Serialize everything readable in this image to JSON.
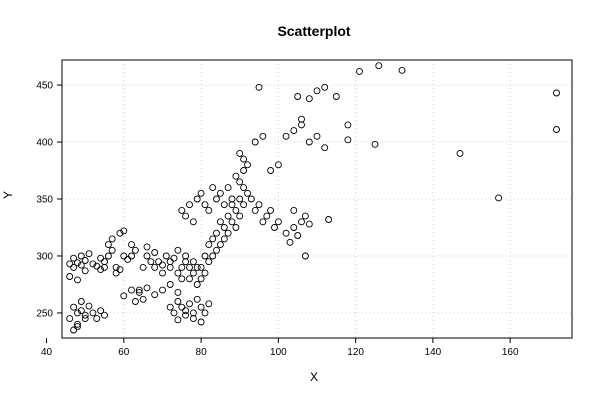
{
  "chart_data": {
    "type": "scatter",
    "title": "Scatterplot",
    "xlabel": "X",
    "ylabel": "Y",
    "xlim": [
      44,
      176
    ],
    "ylim": [
      228,
      472
    ],
    "xticks": [
      "40",
      "60",
      "80",
      "100",
      "120",
      "140",
      "160"
    ],
    "yticks": [
      "250",
      "300",
      "350",
      "400",
      "450"
    ],
    "xtick_values": [
      40,
      60,
      80,
      100,
      120,
      140,
      160
    ],
    "ytick_values": [
      250,
      300,
      350,
      400,
      450
    ],
    "grid": true,
    "point_style": "open-circle",
    "point_color": "#000000",
    "points": [
      [
        46,
        293
      ],
      [
        47,
        290
      ],
      [
        46,
        282
      ],
      [
        47,
        298
      ],
      [
        48,
        294
      ],
      [
        48,
        279
      ],
      [
        49,
        292
      ],
      [
        49,
        300
      ],
      [
        50,
        296
      ],
      [
        50,
        287
      ],
      [
        51,
        302
      ],
      [
        52,
        293
      ],
      [
        53,
        291
      ],
      [
        54,
        288
      ],
      [
        54,
        298
      ],
      [
        55,
        295
      ],
      [
        55,
        290
      ],
      [
        56,
        300
      ],
      [
        56,
        310
      ],
      [
        57,
        315
      ],
      [
        57,
        305
      ],
      [
        58,
        290
      ],
      [
        58,
        285
      ],
      [
        59,
        288
      ],
      [
        59,
        320
      ],
      [
        60,
        322
      ],
      [
        60,
        300
      ],
      [
        61,
        297
      ],
      [
        62,
        300
      ],
      [
        62,
        310
      ],
      [
        63,
        305
      ],
      [
        64,
        270
      ],
      [
        65,
        290
      ],
      [
        66,
        308
      ],
      [
        66,
        300
      ],
      [
        67,
        295
      ],
      [
        68,
        303
      ],
      [
        68,
        290
      ],
      [
        69,
        295
      ],
      [
        70,
        292
      ],
      [
        70,
        285
      ],
      [
        71,
        300
      ],
      [
        72,
        295
      ],
      [
        72,
        290
      ],
      [
        73,
        298
      ],
      [
        74,
        305
      ],
      [
        74,
        285
      ],
      [
        75,
        290
      ],
      [
        75,
        280
      ],
      [
        76,
        295
      ],
      [
        76,
        300
      ],
      [
        77,
        290
      ],
      [
        77,
        280
      ],
      [
        78,
        285
      ],
      [
        78,
        295
      ],
      [
        79,
        290
      ],
      [
        79,
        275
      ],
      [
        80,
        280
      ],
      [
        80,
        290
      ],
      [
        81,
        285
      ],
      [
        81,
        300
      ],
      [
        82,
        295
      ],
      [
        82,
        310
      ],
      [
        83,
        315
      ],
      [
        83,
        300
      ],
      [
        84,
        305
      ],
      [
        84,
        320
      ],
      [
        85,
        310
      ],
      [
        85,
        330
      ],
      [
        86,
        325
      ],
      [
        86,
        315
      ],
      [
        87,
        320
      ],
      [
        87,
        335
      ],
      [
        88,
        330
      ],
      [
        88,
        345
      ],
      [
        89,
        340
      ],
      [
        89,
        325
      ],
      [
        90,
        335
      ],
      [
        90,
        350
      ],
      [
        91,
        345
      ],
      [
        91,
        360
      ],
      [
        92,
        355
      ],
      [
        93,
        350
      ],
      [
        94,
        340
      ],
      [
        95,
        345
      ],
      [
        96,
        330
      ],
      [
        97,
        335
      ],
      [
        98,
        340
      ],
      [
        99,
        325
      ],
      [
        100,
        330
      ],
      [
        47,
        255
      ],
      [
        48,
        250
      ],
      [
        48,
        240
      ],
      [
        49,
        252
      ],
      [
        50,
        248
      ],
      [
        51,
        256
      ],
      [
        52,
        250
      ],
      [
        53,
        245
      ],
      [
        54,
        252
      ],
      [
        55,
        248
      ],
      [
        46,
        245
      ],
      [
        47,
        235
      ],
      [
        48,
        238
      ],
      [
        49,
        260
      ],
      [
        50,
        245
      ],
      [
        72,
        255
      ],
      [
        73,
        250
      ],
      [
        74,
        260
      ],
      [
        75,
        255
      ],
      [
        76,
        252
      ],
      [
        77,
        258
      ],
      [
        78,
        250
      ],
      [
        79,
        262
      ],
      [
        80,
        255
      ],
      [
        81,
        250
      ],
      [
        82,
        258
      ],
      [
        78,
        245
      ],
      [
        76,
        248
      ],
      [
        74,
        244
      ],
      [
        80,
        242
      ],
      [
        60,
        265
      ],
      [
        62,
        270
      ],
      [
        64,
        268
      ],
      [
        66,
        272
      ],
      [
        68,
        266
      ],
      [
        70,
        270
      ],
      [
        72,
        275
      ],
      [
        74,
        268
      ],
      [
        63,
        260
      ],
      [
        65,
        262
      ],
      [
        75,
        340
      ],
      [
        76,
        335
      ],
      [
        77,
        345
      ],
      [
        78,
        330
      ],
      [
        79,
        350
      ],
      [
        80,
        355
      ],
      [
        81,
        345
      ],
      [
        82,
        340
      ],
      [
        83,
        360
      ],
      [
        84,
        350
      ],
      [
        85,
        355
      ],
      [
        86,
        345
      ],
      [
        87,
        360
      ],
      [
        88,
        350
      ],
      [
        89,
        370
      ],
      [
        90,
        365
      ],
      [
        91,
        375
      ],
      [
        92,
        380
      ],
      [
        90,
        390
      ],
      [
        91,
        385
      ],
      [
        94,
        400
      ],
      [
        96,
        405
      ],
      [
        98,
        375
      ],
      [
        100,
        380
      ],
      [
        102,
        405
      ],
      [
        104,
        410
      ],
      [
        106,
        415
      ],
      [
        108,
        400
      ],
      [
        110,
        405
      ],
      [
        112,
        395
      ],
      [
        102,
        320
      ],
      [
        103,
        312
      ],
      [
        104,
        325
      ],
      [
        105,
        318
      ],
      [
        106,
        330
      ],
      [
        107,
        335
      ],
      [
        108,
        328
      ],
      [
        113,
        332
      ],
      [
        104,
        340
      ],
      [
        107,
        300
      ],
      [
        105,
        440
      ],
      [
        106,
        420
      ],
      [
        108,
        438
      ],
      [
        110,
        445
      ],
      [
        112,
        448
      ],
      [
        115,
        440
      ],
      [
        118,
        415
      ],
      [
        118,
        402
      ],
      [
        121,
        462
      ],
      [
        126,
        467
      ],
      [
        132,
        463
      ],
      [
        125,
        398
      ],
      [
        95,
        448
      ],
      [
        147,
        390
      ],
      [
        157,
        351
      ],
      [
        172,
        443
      ],
      [
        172,
        411
      ]
    ]
  }
}
